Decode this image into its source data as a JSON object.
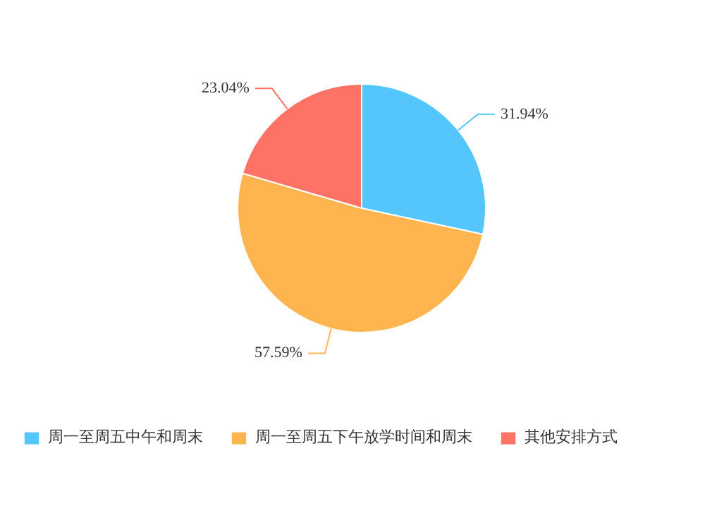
{
  "chart_data": {
    "type": "pie",
    "categories": [
      "周一至周五中午和周末",
      "周一至周五下午放学时间和周末",
      "其他安排方式"
    ],
    "values": [
      31.94,
      57.59,
      23.04
    ],
    "colors": [
      "#55c6fc",
      "#ffb54f",
      "#ff7265"
    ],
    "value_labels": [
      "31.94%",
      "57.59%",
      "23.04%"
    ],
    "legend": "bottom"
  }
}
